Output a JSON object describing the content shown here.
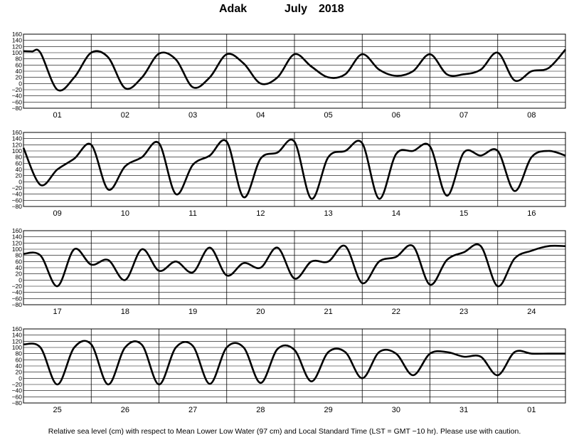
{
  "title": {
    "station": "Adak",
    "month": "July",
    "year": "2018"
  },
  "footer": "Relative sea level (cm) with respect to Mean Lower Low Water (97 cm) and Local Standard Time (LST = GMT −10 hr). Please use with caution.",
  "chart_data": {
    "type": "line",
    "y_ticks": [
      "160",
      "140",
      "120",
      "100",
      "80",
      "60",
      "40",
      "20",
      "0",
      "−20",
      "−40",
      "−60",
      "−80"
    ],
    "ylim": [
      -80,
      160
    ],
    "grid": true,
    "panels": [
      {
        "days": [
          "01",
          "02",
          "03",
          "04",
          "05",
          "06",
          "07",
          "08"
        ],
        "x": [
          0.0,
          0.125,
          0.25,
          0.5,
          0.75,
          1.0,
          1.25,
          1.5,
          1.75,
          2.0,
          2.25,
          2.5,
          2.75,
          3.0,
          3.25,
          3.5,
          3.75,
          4.0,
          4.25,
          4.5,
          4.75,
          5.0,
          5.25,
          5.5,
          5.75,
          6.0,
          6.25,
          6.5,
          6.75,
          7.0,
          7.25,
          7.5,
          7.75,
          8.0
        ],
        "y": [
          105,
          104,
          100,
          -20,
          20,
          100,
          85,
          -15,
          20,
          97,
          78,
          -12,
          20,
          95,
          65,
          0,
          20,
          95,
          55,
          20,
          30,
          95,
          45,
          25,
          40,
          95,
          30,
          30,
          45,
          100,
          10,
          40,
          50,
          110
        ]
      },
      {
        "days": [
          "09",
          "10",
          "11",
          "12",
          "13",
          "14",
          "15",
          "16"
        ],
        "x": [
          0.0,
          0.25,
          0.5,
          0.75,
          1.0,
          1.25,
          1.5,
          1.75,
          2.0,
          2.25,
          2.5,
          2.75,
          3.0,
          3.25,
          3.5,
          3.75,
          4.0,
          4.25,
          4.5,
          4.75,
          5.0,
          5.25,
          5.5,
          5.75,
          6.0,
          6.25,
          6.5,
          6.75,
          7.0,
          7.25,
          7.5,
          7.75,
          8.0
        ],
        "y": [
          110,
          -10,
          40,
          75,
          120,
          -25,
          50,
          80,
          125,
          -40,
          55,
          85,
          130,
          -50,
          75,
          95,
          130,
          -55,
          80,
          100,
          125,
          -55,
          90,
          100,
          115,
          -45,
          95,
          85,
          100,
          -30,
          80,
          100,
          85
        ]
      },
      {
        "days": [
          "17",
          "18",
          "19",
          "20",
          "21",
          "22",
          "23",
          "24"
        ],
        "x": [
          0.0,
          0.25,
          0.5,
          0.75,
          1.0,
          1.25,
          1.5,
          1.75,
          2.0,
          2.25,
          2.5,
          2.75,
          3.0,
          3.25,
          3.5,
          3.75,
          4.0,
          4.25,
          4.5,
          4.75,
          5.0,
          5.25,
          5.5,
          5.75,
          6.0,
          6.25,
          6.5,
          6.75,
          7.0,
          7.25,
          7.5,
          7.75,
          8.0
        ],
        "y": [
          85,
          80,
          -20,
          100,
          50,
          65,
          0,
          100,
          30,
          60,
          25,
          105,
          15,
          55,
          40,
          105,
          5,
          60,
          60,
          110,
          -10,
          60,
          75,
          110,
          -15,
          65,
          90,
          110,
          -20,
          70,
          95,
          110,
          110
        ]
      },
      {
        "days": [
          "25",
          "26",
          "27",
          "28",
          "29",
          "30",
          "31",
          "01"
        ],
        "x": [
          0.0,
          0.25,
          0.5,
          0.75,
          1.0,
          1.25,
          1.5,
          1.75,
          2.0,
          2.25,
          2.5,
          2.75,
          3.0,
          3.25,
          3.5,
          3.75,
          4.0,
          4.25,
          4.5,
          4.75,
          5.0,
          5.25,
          5.5,
          5.75,
          6.0,
          6.25,
          6.5,
          6.75,
          7.0,
          7.25,
          7.5,
          7.75,
          8.0
        ],
        "y": [
          110,
          100,
          -20,
          100,
          110,
          -20,
          100,
          108,
          -20,
          100,
          105,
          -18,
          100,
          100,
          -15,
          95,
          92,
          -10,
          85,
          85,
          0,
          85,
          80,
          10,
          80,
          85,
          70,
          70,
          10,
          85,
          80,
          80,
          80
        ]
      }
    ]
  }
}
